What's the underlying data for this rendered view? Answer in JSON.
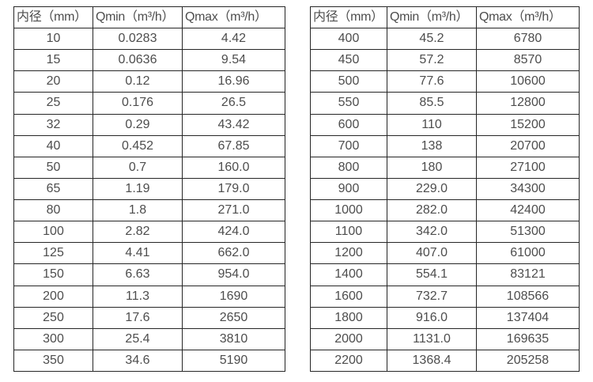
{
  "colors": {
    "background": "#ffffff",
    "border": "#262626",
    "text": "#4d4d4d"
  },
  "chart_data": [
    {
      "type": "table",
      "name": "flow-rates-small-diameters",
      "headers": [
        "内径（mm）",
        "Qmin（m³/h）",
        "Qmax（m³/h）"
      ],
      "rows": [
        [
          "10",
          "0.0283",
          "4.42"
        ],
        [
          "15",
          "0.0636",
          "9.54"
        ],
        [
          "20",
          "0.12",
          "16.96"
        ],
        [
          "25",
          "0.176",
          "26.5"
        ],
        [
          "32",
          "0.29",
          "43.42"
        ],
        [
          "40",
          "0.452",
          "67.85"
        ],
        [
          "50",
          "0.7",
          "160.0"
        ],
        [
          "65",
          "1.19",
          "179.0"
        ],
        [
          "80",
          "1.8",
          "271.0"
        ],
        [
          "100",
          "2.82",
          "424.0"
        ],
        [
          "125",
          "4.41",
          "662.0"
        ],
        [
          "150",
          "6.63",
          "954.0"
        ],
        [
          "200",
          "11.3",
          "1690"
        ],
        [
          "250",
          "17.6",
          "2650"
        ],
        [
          "300",
          "25.4",
          "3810"
        ],
        [
          "350",
          "34.6",
          "5190"
        ]
      ]
    },
    {
      "type": "table",
      "name": "flow-rates-large-diameters",
      "headers": [
        "内径（mm）",
        "Qmin（m³/h）",
        "Qmax（m³/h）"
      ],
      "rows": [
        [
          "400",
          "45.2",
          "6780"
        ],
        [
          "450",
          "57.2",
          "8570"
        ],
        [
          "500",
          "77.6",
          "10600"
        ],
        [
          "550",
          "85.5",
          "12800"
        ],
        [
          "600",
          "110",
          "15200"
        ],
        [
          "700",
          "138",
          "20700"
        ],
        [
          "800",
          "180",
          "27100"
        ],
        [
          "900",
          "229.0",
          "34300"
        ],
        [
          "1000",
          "282.0",
          "42400"
        ],
        [
          "1100",
          "342.0",
          "51300"
        ],
        [
          "1200",
          "407.0",
          "61000"
        ],
        [
          "1400",
          "554.1",
          "83121"
        ],
        [
          "1600",
          "732.7",
          "108566"
        ],
        [
          "1800",
          "916.0",
          "137404"
        ],
        [
          "2000",
          "1131.0",
          "169635"
        ],
        [
          "2200",
          "1368.4",
          "205258"
        ]
      ]
    }
  ]
}
